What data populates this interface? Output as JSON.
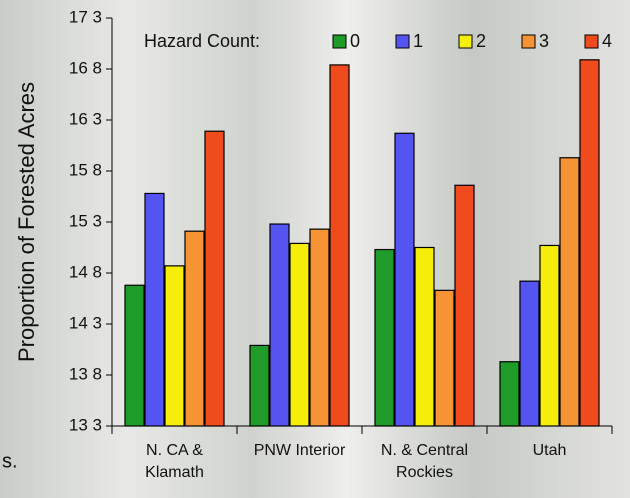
{
  "chart_data": {
    "type": "bar",
    "y_label": "Proportion of Forested Acres",
    "legend_title": "Hazard Count:",
    "categories": [
      "N. CA &\nKlamath",
      "PNW Interior",
      "N. & Central\nRockies",
      "Utah"
    ],
    "series": [
      {
        "name": "0",
        "color": "#1f9b2a",
        "values": [
          14.68,
          14.09,
          15.03,
          13.93
        ]
      },
      {
        "name": "1",
        "color": "#5454f2",
        "values": [
          15.58,
          15.28,
          16.17,
          14.72
        ]
      },
      {
        "name": "2",
        "color": "#f5ee0a",
        "values": [
          14.87,
          15.09,
          15.05,
          15.07
        ]
      },
      {
        "name": "3",
        "color": "#f69334",
        "values": [
          15.21,
          15.23,
          14.63,
          15.93
        ]
      },
      {
        "name": "4",
        "color": "#ef4b1c",
        "values": [
          16.19,
          16.84,
          15.66,
          16.89
        ]
      }
    ],
    "ylim": [
      13.3,
      17.3
    ],
    "yticks": [
      {
        "value": 13.3,
        "label": "13 3"
      },
      {
        "value": 13.8,
        "label": "13 8"
      },
      {
        "value": 14.3,
        "label": "14 3"
      },
      {
        "value": 14.8,
        "label": "14 8"
      },
      {
        "value": 15.3,
        "label": "15 3"
      },
      {
        "value": 15.8,
        "label": "15 8"
      },
      {
        "value": 16.3,
        "label": "16 3"
      },
      {
        "value": 16.8,
        "label": "16 8"
      },
      {
        "value": 17.3,
        "label": "17 3"
      }
    ],
    "annotations": [
      "s."
    ]
  }
}
